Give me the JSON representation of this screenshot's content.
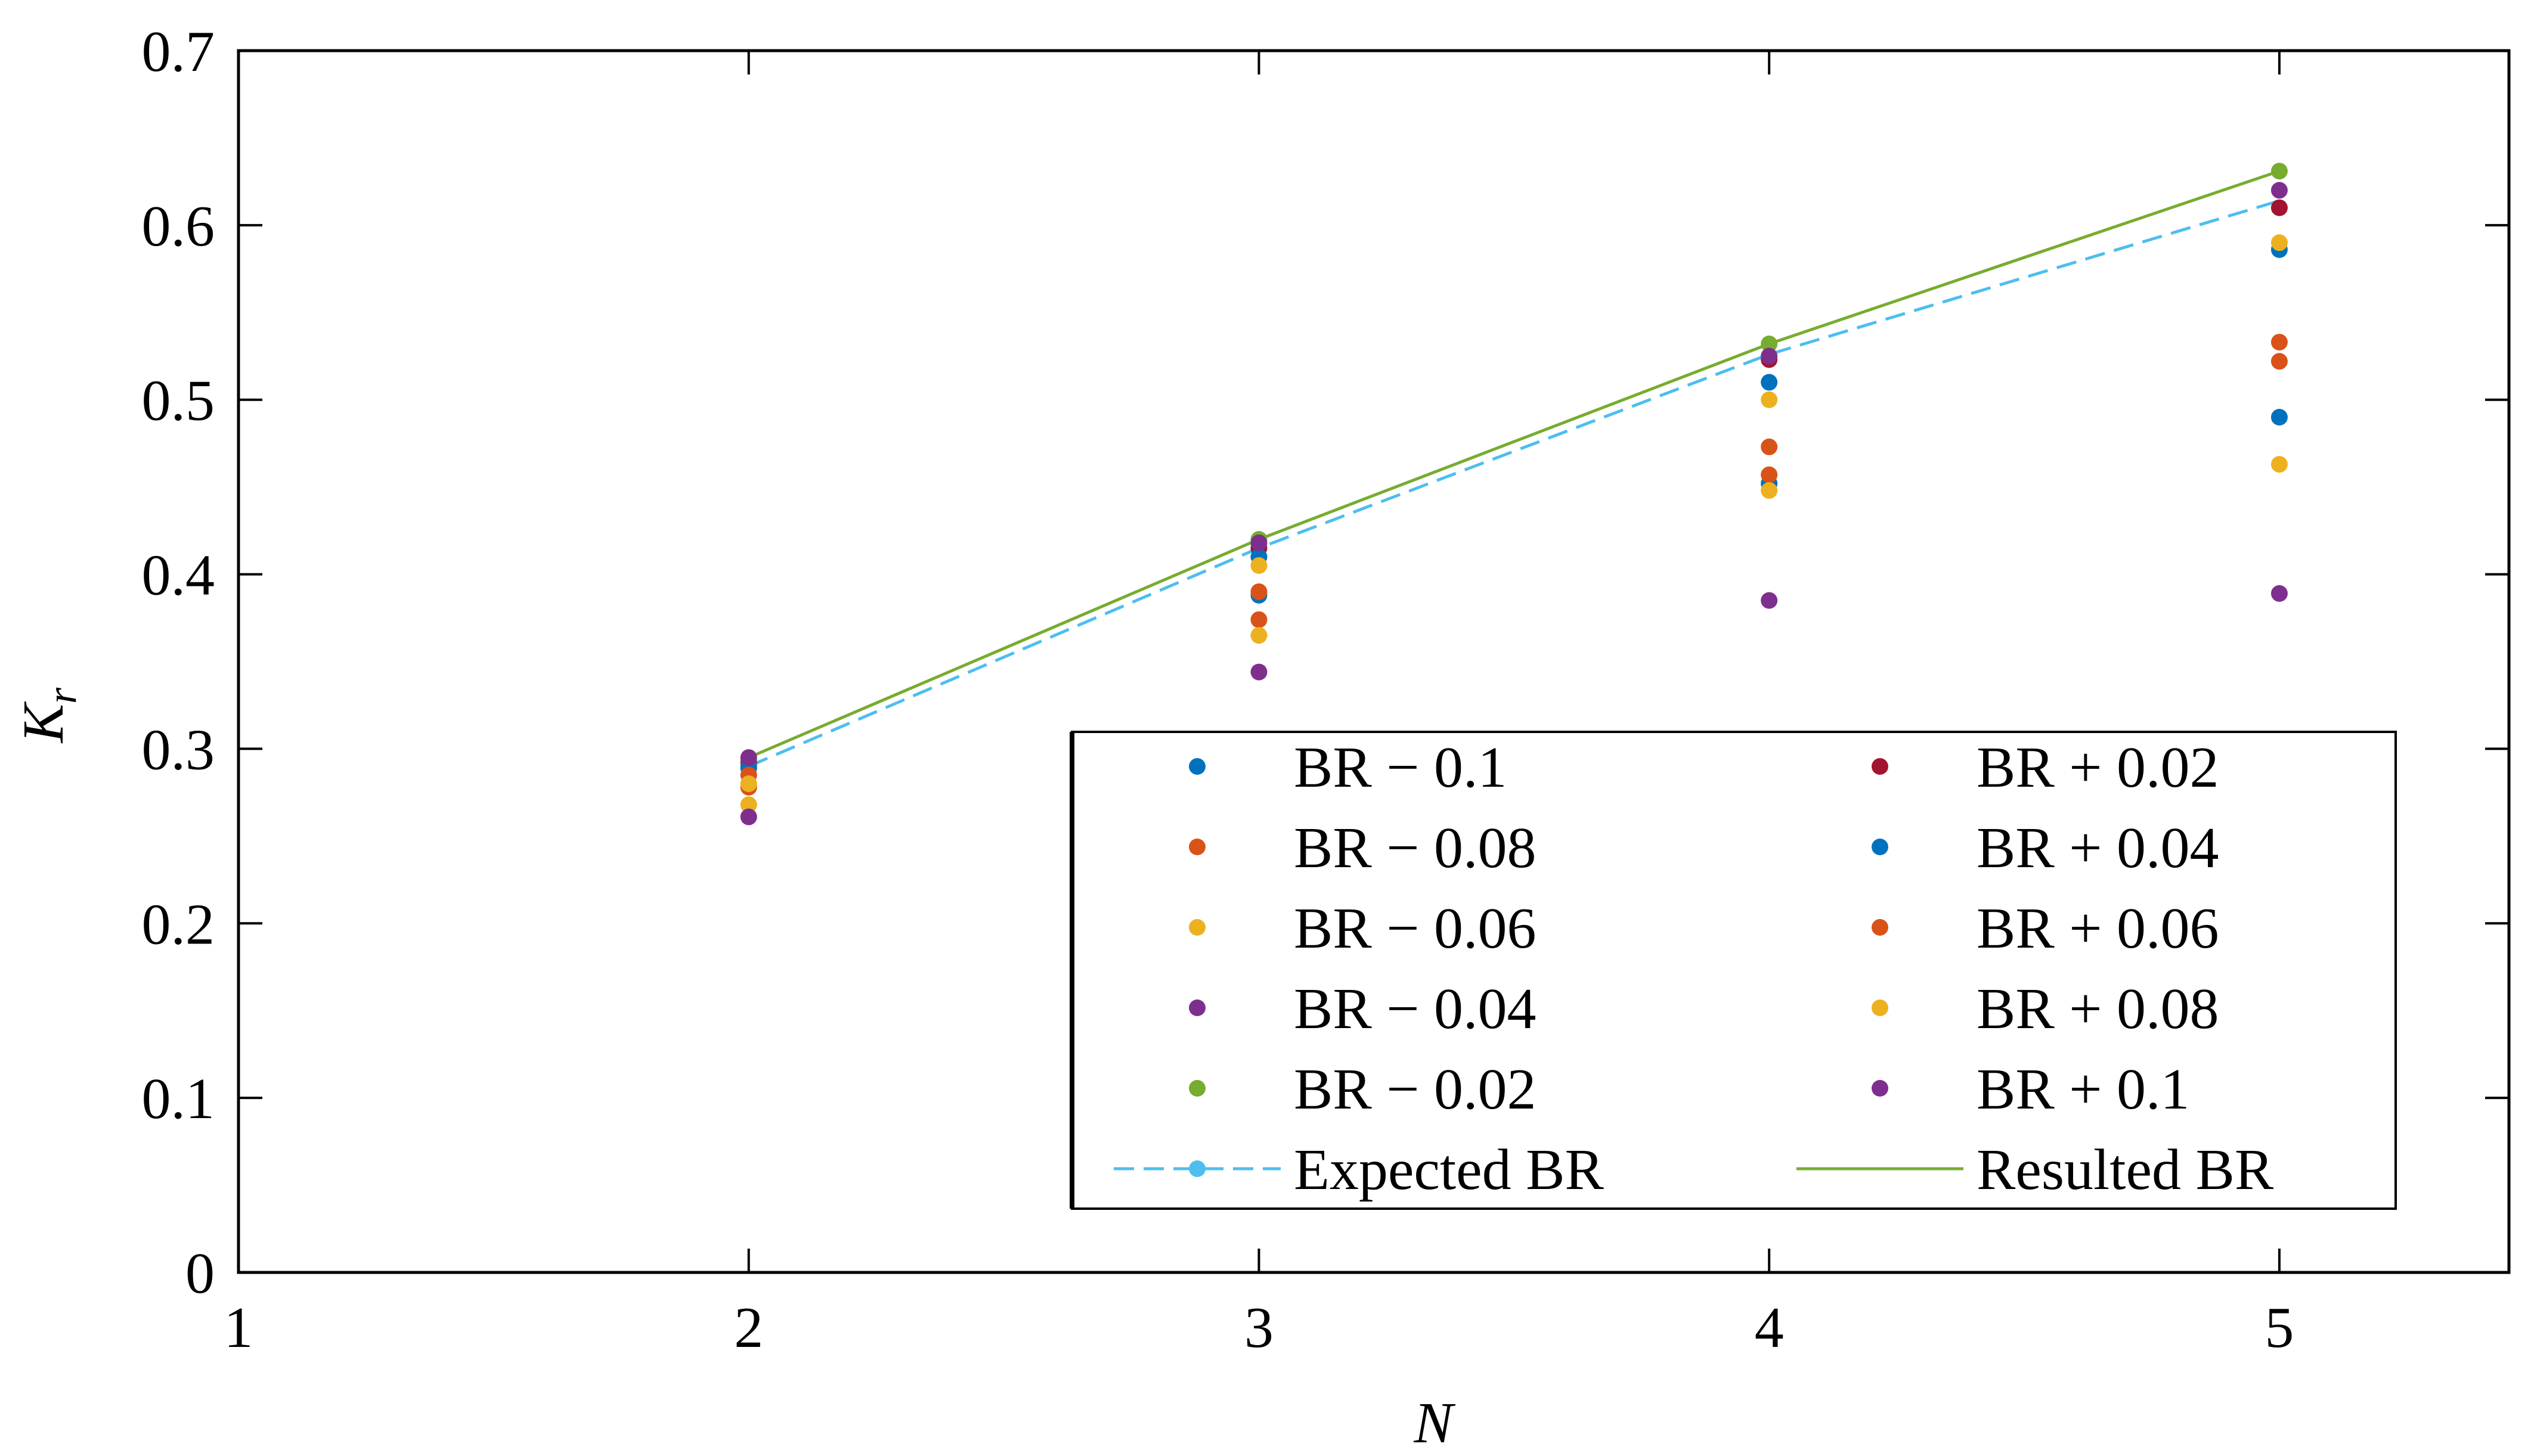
{
  "chart_data": {
    "type": "scatter",
    "xlabel": "N",
    "ylabel": "K",
    "ylabel_sub": "r",
    "xlim": [
      1,
      5.45
    ],
    "ylim": [
      0,
      0.7
    ],
    "xticks": [
      "1",
      "2",
      "3",
      "4",
      "5"
    ],
    "yticks": [
      "0",
      "0.1",
      "0.2",
      "0.3",
      "0.4",
      "0.5",
      "0.6",
      "0.7"
    ],
    "grid": false,
    "legend_position": "bottom-right",
    "legend_columns": 2,
    "series": [
      {
        "name": "BR − 0.1",
        "kind": "points",
        "color": "#0072BD",
        "x": [
          2,
          3,
          4,
          5
        ],
        "y": [
          0.289,
          0.388,
          0.452,
          0.49
        ]
      },
      {
        "name": "BR − 0.08",
        "kind": "points",
        "color": "#D95319",
        "x": [
          2,
          3,
          4,
          5
        ],
        "y": [
          0.278,
          0.374,
          0.457,
          0.522
        ]
      },
      {
        "name": "BR − 0.06",
        "kind": "points",
        "color": "#EDB120",
        "x": [
          2,
          3,
          4,
          5
        ],
        "y": [
          0.268,
          0.365,
          0.448,
          0.463
        ]
      },
      {
        "name": "BR − 0.04",
        "kind": "points",
        "color": "#7E2F8E",
        "x": [
          2,
          3,
          4,
          5
        ],
        "y": [
          0.261,
          0.344,
          0.385,
          0.389
        ]
      },
      {
        "name": "BR − 0.02",
        "kind": "points",
        "color": "#77AC30",
        "x": [
          2,
          3,
          4,
          5
        ],
        "y": [
          0.294,
          0.42,
          0.532,
          0.631
        ]
      },
      {
        "name": "BR + 0.02",
        "kind": "points",
        "color": "#A2142F",
        "x": [
          2,
          3,
          4,
          5
        ],
        "y": [
          0.292,
          0.415,
          0.523,
          0.61
        ]
      },
      {
        "name": "BR + 0.04",
        "kind": "points",
        "color": "#0072BD",
        "x": [
          2,
          3,
          4,
          5
        ],
        "y": [
          0.29,
          0.41,
          0.51,
          0.586
        ]
      },
      {
        "name": "BR + 0.06",
        "kind": "points",
        "color": "#D95319",
        "x": [
          2,
          3,
          4,
          5
        ],
        "y": [
          0.285,
          0.39,
          0.473,
          0.533
        ]
      },
      {
        "name": "BR + 0.08",
        "kind": "points",
        "color": "#EDB120",
        "x": [
          2,
          3,
          4,
          5
        ],
        "y": [
          0.28,
          0.405,
          0.5,
          0.59
        ]
      },
      {
        "name": "BR + 0.1",
        "kind": "points",
        "color": "#7E2F8E",
        "x": [
          2,
          3,
          4,
          5
        ],
        "y": [
          0.295,
          0.418,
          0.525,
          0.62
        ]
      },
      {
        "name": "Expected BR",
        "kind": "dashed-line",
        "color": "#4DBEEE",
        "x": [
          2,
          3,
          4,
          5
        ],
        "y": [
          0.29,
          0.415,
          0.526,
          0.614
        ]
      },
      {
        "name": "Resulted BR",
        "kind": "solid-line",
        "color": "#77AC30",
        "x": [
          2,
          3,
          4,
          5
        ],
        "y": [
          0.295,
          0.42,
          0.532,
          0.631
        ]
      }
    ]
  }
}
